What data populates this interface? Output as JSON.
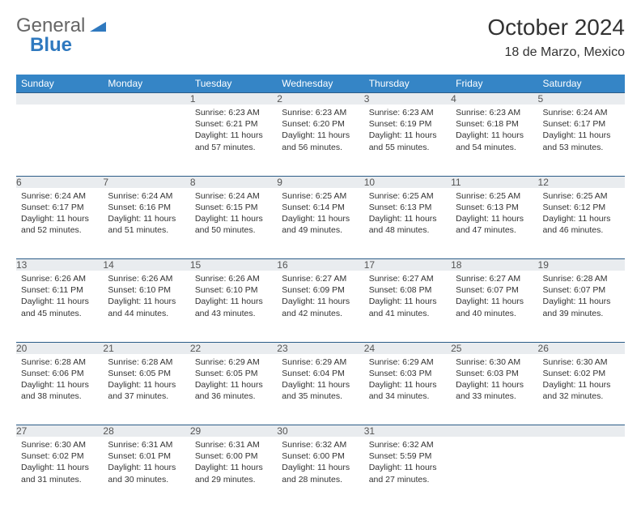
{
  "logo": {
    "text1": "General",
    "text2": "Blue"
  },
  "title": "October 2024",
  "location": "18 de Marzo, Mexico",
  "colors": {
    "header_bg": "#3585c6",
    "header_text": "#ffffff",
    "daynum_bg": "#e9ecef",
    "border": "#2c5d88",
    "logo_gray": "#666666",
    "logo_blue": "#2f79bf"
  },
  "daysOfWeek": [
    "Sunday",
    "Monday",
    "Tuesday",
    "Wednesday",
    "Thursday",
    "Friday",
    "Saturday"
  ],
  "weeks": [
    [
      {
        "n": "",
        "sr": "",
        "ss": "",
        "dl": ""
      },
      {
        "n": "",
        "sr": "",
        "ss": "",
        "dl": ""
      },
      {
        "n": "1",
        "sr": "Sunrise: 6:23 AM",
        "ss": "Sunset: 6:21 PM",
        "dl": "Daylight: 11 hours and 57 minutes."
      },
      {
        "n": "2",
        "sr": "Sunrise: 6:23 AM",
        "ss": "Sunset: 6:20 PM",
        "dl": "Daylight: 11 hours and 56 minutes."
      },
      {
        "n": "3",
        "sr": "Sunrise: 6:23 AM",
        "ss": "Sunset: 6:19 PM",
        "dl": "Daylight: 11 hours and 55 minutes."
      },
      {
        "n": "4",
        "sr": "Sunrise: 6:23 AM",
        "ss": "Sunset: 6:18 PM",
        "dl": "Daylight: 11 hours and 54 minutes."
      },
      {
        "n": "5",
        "sr": "Sunrise: 6:24 AM",
        "ss": "Sunset: 6:17 PM",
        "dl": "Daylight: 11 hours and 53 minutes."
      }
    ],
    [
      {
        "n": "6",
        "sr": "Sunrise: 6:24 AM",
        "ss": "Sunset: 6:17 PM",
        "dl": "Daylight: 11 hours and 52 minutes."
      },
      {
        "n": "7",
        "sr": "Sunrise: 6:24 AM",
        "ss": "Sunset: 6:16 PM",
        "dl": "Daylight: 11 hours and 51 minutes."
      },
      {
        "n": "8",
        "sr": "Sunrise: 6:24 AM",
        "ss": "Sunset: 6:15 PM",
        "dl": "Daylight: 11 hours and 50 minutes."
      },
      {
        "n": "9",
        "sr": "Sunrise: 6:25 AM",
        "ss": "Sunset: 6:14 PM",
        "dl": "Daylight: 11 hours and 49 minutes."
      },
      {
        "n": "10",
        "sr": "Sunrise: 6:25 AM",
        "ss": "Sunset: 6:13 PM",
        "dl": "Daylight: 11 hours and 48 minutes."
      },
      {
        "n": "11",
        "sr": "Sunrise: 6:25 AM",
        "ss": "Sunset: 6:13 PM",
        "dl": "Daylight: 11 hours and 47 minutes."
      },
      {
        "n": "12",
        "sr": "Sunrise: 6:25 AM",
        "ss": "Sunset: 6:12 PM",
        "dl": "Daylight: 11 hours and 46 minutes."
      }
    ],
    [
      {
        "n": "13",
        "sr": "Sunrise: 6:26 AM",
        "ss": "Sunset: 6:11 PM",
        "dl": "Daylight: 11 hours and 45 minutes."
      },
      {
        "n": "14",
        "sr": "Sunrise: 6:26 AM",
        "ss": "Sunset: 6:10 PM",
        "dl": "Daylight: 11 hours and 44 minutes."
      },
      {
        "n": "15",
        "sr": "Sunrise: 6:26 AM",
        "ss": "Sunset: 6:10 PM",
        "dl": "Daylight: 11 hours and 43 minutes."
      },
      {
        "n": "16",
        "sr": "Sunrise: 6:27 AM",
        "ss": "Sunset: 6:09 PM",
        "dl": "Daylight: 11 hours and 42 minutes."
      },
      {
        "n": "17",
        "sr": "Sunrise: 6:27 AM",
        "ss": "Sunset: 6:08 PM",
        "dl": "Daylight: 11 hours and 41 minutes."
      },
      {
        "n": "18",
        "sr": "Sunrise: 6:27 AM",
        "ss": "Sunset: 6:07 PM",
        "dl": "Daylight: 11 hours and 40 minutes."
      },
      {
        "n": "19",
        "sr": "Sunrise: 6:28 AM",
        "ss": "Sunset: 6:07 PM",
        "dl": "Daylight: 11 hours and 39 minutes."
      }
    ],
    [
      {
        "n": "20",
        "sr": "Sunrise: 6:28 AM",
        "ss": "Sunset: 6:06 PM",
        "dl": "Daylight: 11 hours and 38 minutes."
      },
      {
        "n": "21",
        "sr": "Sunrise: 6:28 AM",
        "ss": "Sunset: 6:05 PM",
        "dl": "Daylight: 11 hours and 37 minutes."
      },
      {
        "n": "22",
        "sr": "Sunrise: 6:29 AM",
        "ss": "Sunset: 6:05 PM",
        "dl": "Daylight: 11 hours and 36 minutes."
      },
      {
        "n": "23",
        "sr": "Sunrise: 6:29 AM",
        "ss": "Sunset: 6:04 PM",
        "dl": "Daylight: 11 hours and 35 minutes."
      },
      {
        "n": "24",
        "sr": "Sunrise: 6:29 AM",
        "ss": "Sunset: 6:03 PM",
        "dl": "Daylight: 11 hours and 34 minutes."
      },
      {
        "n": "25",
        "sr": "Sunrise: 6:30 AM",
        "ss": "Sunset: 6:03 PM",
        "dl": "Daylight: 11 hours and 33 minutes."
      },
      {
        "n": "26",
        "sr": "Sunrise: 6:30 AM",
        "ss": "Sunset: 6:02 PM",
        "dl": "Daylight: 11 hours and 32 minutes."
      }
    ],
    [
      {
        "n": "27",
        "sr": "Sunrise: 6:30 AM",
        "ss": "Sunset: 6:02 PM",
        "dl": "Daylight: 11 hours and 31 minutes."
      },
      {
        "n": "28",
        "sr": "Sunrise: 6:31 AM",
        "ss": "Sunset: 6:01 PM",
        "dl": "Daylight: 11 hours and 30 minutes."
      },
      {
        "n": "29",
        "sr": "Sunrise: 6:31 AM",
        "ss": "Sunset: 6:00 PM",
        "dl": "Daylight: 11 hours and 29 minutes."
      },
      {
        "n": "30",
        "sr": "Sunrise: 6:32 AM",
        "ss": "Sunset: 6:00 PM",
        "dl": "Daylight: 11 hours and 28 minutes."
      },
      {
        "n": "31",
        "sr": "Sunrise: 6:32 AM",
        "ss": "Sunset: 5:59 PM",
        "dl": "Daylight: 11 hours and 27 minutes."
      },
      {
        "n": "",
        "sr": "",
        "ss": "",
        "dl": ""
      },
      {
        "n": "",
        "sr": "",
        "ss": "",
        "dl": ""
      }
    ]
  ]
}
